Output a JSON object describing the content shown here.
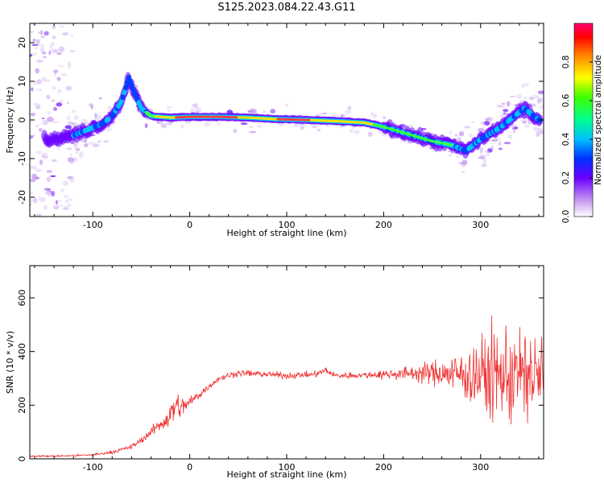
{
  "title": "S125.2023.084.22.43.G11",
  "chart_data": [
    {
      "type": "heatmap",
      "xlabel": "Height of straight line (km)",
      "ylabel": "Frequency (Hz)",
      "xlim": [
        -165,
        365
      ],
      "ylim": [
        -25,
        25
      ],
      "xticks": [
        -100,
        0,
        100,
        200,
        300
      ],
      "yticks": [
        -20,
        -10,
        0,
        10,
        20
      ],
      "colorbar": {
        "label": "Normalized spectral amplitude",
        "range": [
          0,
          1
        ],
        "ticks": [
          "0.0",
          "0.2",
          "0.4",
          "0.6",
          "0.8"
        ]
      },
      "ridge": {
        "x": [
          -140,
          -120,
          -100,
          -90,
          -80,
          -70,
          -63,
          -57,
          -50,
          -40,
          -20,
          0,
          30,
          60,
          90,
          120,
          150,
          180,
          195,
          210,
          230,
          250,
          270,
          285,
          300,
          320,
          335,
          345,
          360
        ],
        "y": [
          -5,
          -4,
          -2,
          -1,
          1,
          5,
          11,
          7,
          3,
          1,
          0.6,
          0.8,
          0.8,
          0.6,
          0.2,
          0,
          -0.3,
          -0.7,
          -1.5,
          -2.5,
          -4,
          -5.5,
          -6.5,
          -8,
          -5,
          -2,
          1,
          3,
          0
        ]
      }
    },
    {
      "type": "line",
      "xlabel": "Height of straight line (km)",
      "ylabel": "SNR (10 * v/v)",
      "xlim": [
        -165,
        365
      ],
      "ylim": [
        0,
        720
      ],
      "xticks": [
        -100,
        0,
        100,
        200,
        300
      ],
      "yticks": [
        0,
        200,
        400,
        600
      ],
      "series": [
        {
          "color": "#f03030",
          "x": [
            -165,
            -140,
            -120,
            -100,
            -80,
            -60,
            -50,
            -40,
            -30,
            -20,
            -15,
            -10,
            0,
            10,
            20,
            30,
            50,
            80,
            100,
            130,
            140,
            150,
            180,
            200,
            220,
            240,
            260,
            280,
            300,
            320,
            330,
            340,
            365
          ],
          "y": [
            10,
            10,
            12,
            15,
            25,
            45,
            70,
            100,
            130,
            160,
            200,
            190,
            210,
            240,
            270,
            300,
            320,
            315,
            310,
            315,
            330,
            310,
            312,
            315,
            318,
            320,
            320,
            315,
            312,
            312,
            315,
            312,
            310
          ],
          "spread": [
            5,
            6,
            6,
            8,
            10,
            15,
            20,
            30,
            50,
            80,
            120,
            60,
            40,
            30,
            20,
            20,
            20,
            20,
            20,
            20,
            20,
            20,
            20,
            30,
            40,
            60,
            90,
            150,
            250,
            300,
            330,
            300,
            280
          ]
        }
      ]
    }
  ]
}
